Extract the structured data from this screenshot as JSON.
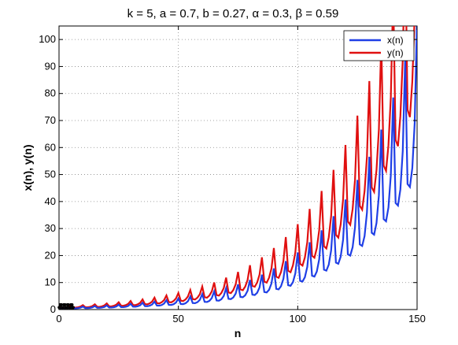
{
  "chart_data": {
    "type": "line",
    "title": "k = 5, a = 0.7, b = 0.27, α = 0.3, β = 0.59",
    "xlabel": "n",
    "ylabel": "x(n),  y(n)",
    "xlim": [
      0,
      150
    ],
    "ylim": [
      0,
      105
    ],
    "xticks": [
      0,
      50,
      100,
      150
    ],
    "yticks": [
      0,
      10,
      20,
      30,
      40,
      50,
      60,
      70,
      80,
      90,
      100
    ],
    "grid": true,
    "legend_position": "top-right",
    "series": [
      {
        "name": "x(n)",
        "color": "#1f3fe6",
        "base": 0.43,
        "growth": 0.0328,
        "spike_period": 5,
        "spike_amp": 0.85,
        "dip_amp": 0.25
      },
      {
        "name": "y(n)",
        "color": "#e01010",
        "base": 0.7,
        "growth": 0.0328,
        "spike_period": 5,
        "spike_amp": 0.7,
        "dip_amp": 0.3
      }
    ],
    "initial_markers": {
      "color": "#000000",
      "x_range": [
        0,
        6
      ],
      "y_range": [
        0,
        2
      ]
    }
  }
}
